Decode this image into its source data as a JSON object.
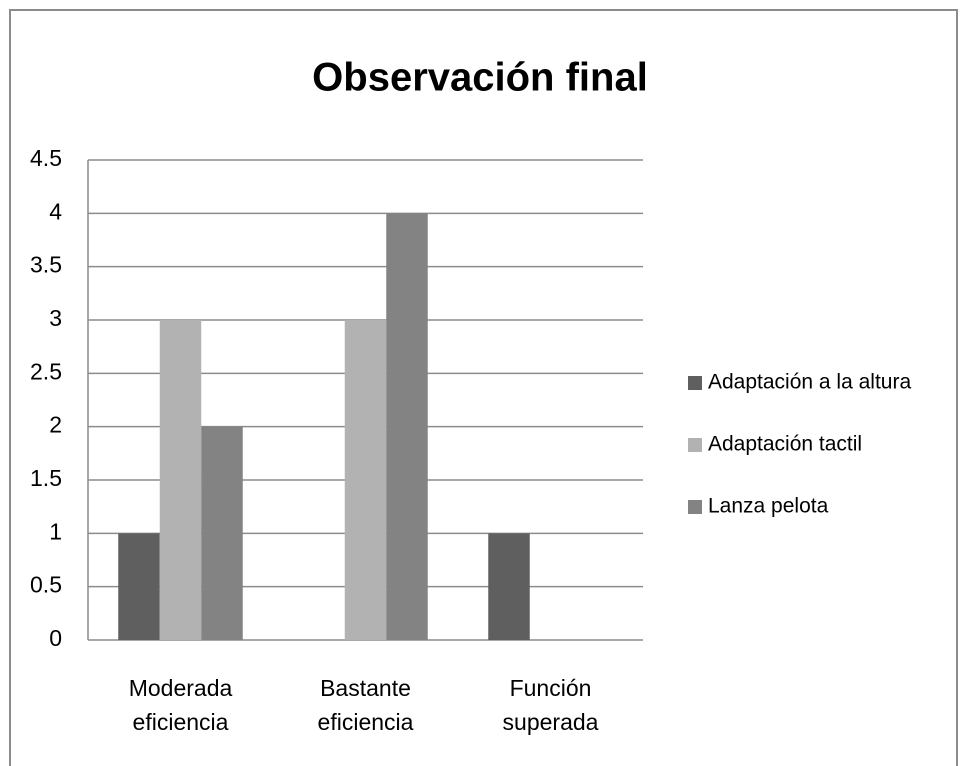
{
  "chart_data": {
    "type": "bar",
    "title": "Observación final",
    "categories": [
      "Moderada eficiencia",
      "Bastante eficiencia",
      "Función superada"
    ],
    "series": [
      {
        "name": "Adaptación a la altura",
        "color": "#5f5f5f",
        "values": [
          1,
          0,
          1
        ]
      },
      {
        "name": "Adaptación tactil",
        "color": "#b2b2b2",
        "values": [
          3,
          3,
          0
        ]
      },
      {
        "name": "Lanza pelota",
        "color": "#838383",
        "values": [
          2,
          4,
          0
        ]
      }
    ],
    "ylim": [
      0,
      4.5
    ],
    "yticks": [
      0,
      0.5,
      1,
      1.5,
      2,
      2.5,
      3,
      3.5,
      4,
      4.5
    ],
    "grid": true,
    "legend": "right"
  }
}
